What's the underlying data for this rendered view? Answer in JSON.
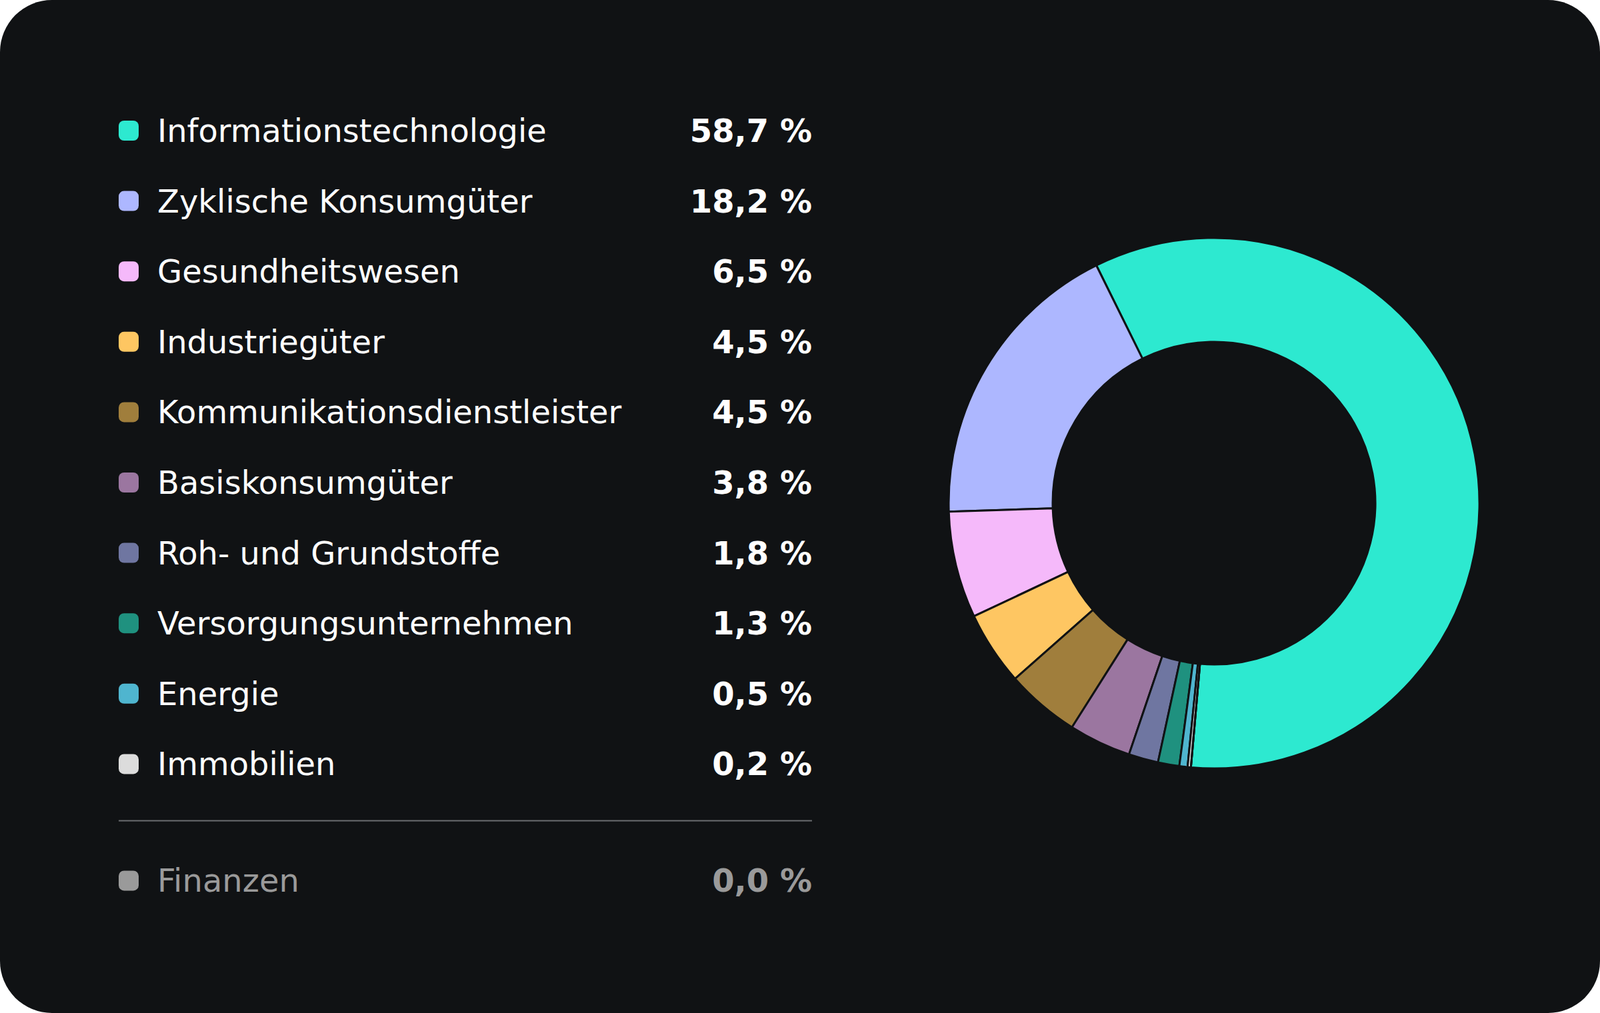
{
  "chart_data": {
    "type": "pie",
    "categories": [
      "Informationstechnologie",
      "Zyklische Konsumgüter",
      "Gesundheitswesen",
      "Industriegüter",
      "Kommunikationsdienstleister",
      "Basiskonsumgüter",
      "Roh- und Grundstoffe",
      "Versorgungsunternehmen",
      "Energie",
      "Immobilien",
      "Finanzen"
    ],
    "values": [
      58.7,
      18.2,
      6.5,
      4.5,
      4.5,
      3.8,
      1.8,
      1.3,
      0.5,
      0.2,
      0.0
    ],
    "value_labels": [
      "58,7 %",
      "18,2 %",
      "6,5 %",
      "4,5 %",
      "4,5 %",
      "3,8 %",
      "1,8 %",
      "1,3 %",
      "0,5 %",
      "0,2 %",
      "0,0 %"
    ],
    "colors": [
      "#2de9d0",
      "#adb7ff",
      "#f5b9fa",
      "#fec662",
      "#a07e3c",
      "#9b76a0",
      "#6f76a1",
      "#1f917f",
      "#4fb5cf",
      "#dcdcdc",
      "#9a9a9a"
    ],
    "legend": "left"
  }
}
